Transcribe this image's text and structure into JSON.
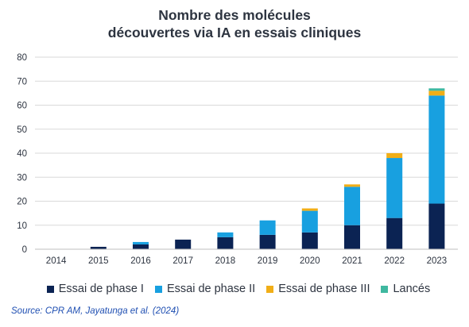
{
  "chart_data": {
    "type": "bar",
    "stacked": true,
    "title": "Nombre des molécules\ndécouvertes via IA en essais cliniques",
    "title_lines": [
      "Nombre des molécules",
      "découvertes via IA en essais cliniques"
    ],
    "categories": [
      "2014",
      "2015",
      "2016",
      "2017",
      "2018",
      "2019",
      "2020",
      "2021",
      "2022",
      "2023"
    ],
    "series": [
      {
        "name": "Essai de phase I",
        "color": "#0b2353",
        "values": [
          0,
          1,
          2,
          4,
          5,
          6,
          7,
          10,
          13,
          19
        ]
      },
      {
        "name": "Essai de phase II",
        "color": "#18a0e0",
        "values": [
          0,
          0,
          1,
          0,
          2,
          6,
          9,
          16,
          25,
          45
        ]
      },
      {
        "name": "Essai de phase III",
        "color": "#f1ae17",
        "values": [
          0,
          0,
          0,
          0,
          0,
          0,
          1,
          1,
          2,
          2
        ]
      },
      {
        "name": "Lancés",
        "color": "#3fb8a0",
        "values": [
          0,
          0,
          0,
          0,
          0,
          0,
          0,
          0,
          0,
          1
        ]
      }
    ],
    "ylim": [
      0,
      80
    ],
    "yticks": [
      0,
      10,
      20,
      30,
      40,
      50,
      60,
      70,
      80
    ],
    "grid": true,
    "legend_position": "bottom"
  },
  "source": "Source: CPR AM, Jayatunga et al. (2024)"
}
